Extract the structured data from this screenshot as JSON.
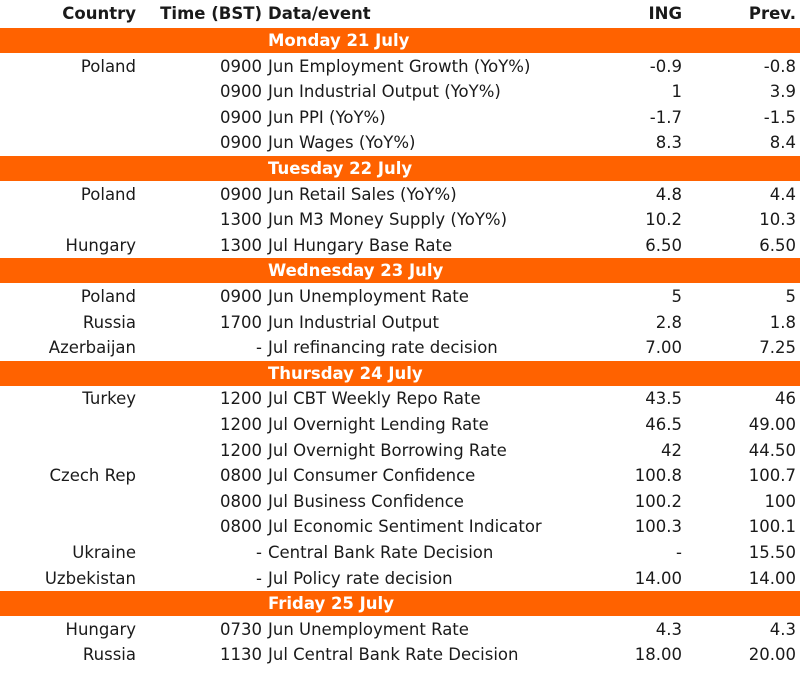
{
  "header": {
    "country": "Country",
    "time": "Time (BST)",
    "event": "Data/event",
    "ing": "ING",
    "prev": "Prev."
  },
  "days": [
    {
      "label": "Monday 21 July",
      "rows": [
        {
          "country": "Poland",
          "time": "0900",
          "event": "Jun Employment Growth (YoY%)",
          "ing": "-0.9",
          "prev": "-0.8"
        },
        {
          "country": "",
          "time": "0900",
          "event": "Jun Industrial Output (YoY%)",
          "ing": "1",
          "prev": "3.9"
        },
        {
          "country": "",
          "time": "0900",
          "event": "Jun PPI (YoY%)",
          "ing": "-1.7",
          "prev": "-1.5"
        },
        {
          "country": "",
          "time": "0900",
          "event": "Jun Wages (YoY%)",
          "ing": "8.3",
          "prev": "8.4"
        }
      ]
    },
    {
      "label": "Tuesday 22 July",
      "rows": [
        {
          "country": "Poland",
          "time": "0900",
          "event": "Jun Retail Sales (YoY%)",
          "ing": "4.8",
          "prev": "4.4"
        },
        {
          "country": "",
          "time": "1300",
          "event": "Jun M3 Money Supply (YoY%)",
          "ing": "10.2",
          "prev": "10.3"
        },
        {
          "country": "Hungary",
          "time": "1300",
          "event": "Jul Hungary Base Rate",
          "ing": "6.50",
          "prev": "6.50"
        }
      ]
    },
    {
      "label": "Wednesday 23 July",
      "rows": [
        {
          "country": "Poland",
          "time": "0900",
          "event": "Jun Unemployment Rate",
          "ing": "5",
          "prev": "5"
        },
        {
          "country": "Russia",
          "time": "1700",
          "event": "Jun Industrial Output",
          "ing": "2.8",
          "prev": "1.8"
        },
        {
          "country": "Azerbaijan",
          "time": "-",
          "event": "Jul refinancing rate decision",
          "ing": "7.00",
          "prev": "7.25"
        }
      ]
    },
    {
      "label": "Thursday 24 July",
      "rows": [
        {
          "country": "Turkey",
          "time": "1200",
          "event": "Jul CBT Weekly Repo Rate",
          "ing": "43.5",
          "prev": "46"
        },
        {
          "country": "",
          "time": "1200",
          "event": "Jul Overnight Lending Rate",
          "ing": "46.5",
          "prev": "49.00"
        },
        {
          "country": "",
          "time": "1200",
          "event": "Jul Overnight Borrowing Rate",
          "ing": "42",
          "prev": "44.50"
        },
        {
          "country": "Czech Rep",
          "time": "0800",
          "event": "Jul Consumer Confidence",
          "ing": "100.8",
          "prev": "100.7"
        },
        {
          "country": "",
          "time": "0800",
          "event": "Jul Business Confidence",
          "ing": "100.2",
          "prev": "100"
        },
        {
          "country": "",
          "time": "0800",
          "event": "Jul Economic Sentiment Indicator",
          "ing": "100.3",
          "prev": "100.1"
        },
        {
          "country": "Ukraine",
          "time": "-",
          "event": "Central Bank Rate Decision",
          "ing": "-",
          "prev": "15.50"
        },
        {
          "country": "Uzbekistan",
          "time": "-",
          "event": "Jul Policy rate decision",
          "ing": "14.00",
          "prev": "14.00"
        }
      ]
    },
    {
      "label": "Friday 25 July",
      "rows": [
        {
          "country": "Hungary",
          "time": "0730",
          "event": "Jun Unemployment Rate",
          "ing": "4.3",
          "prev": "4.3"
        },
        {
          "country": "Russia",
          "time": "1130",
          "event": "Jul Central Bank Rate Decision",
          "ing": "18.00",
          "prev": "20.00"
        }
      ]
    }
  ]
}
